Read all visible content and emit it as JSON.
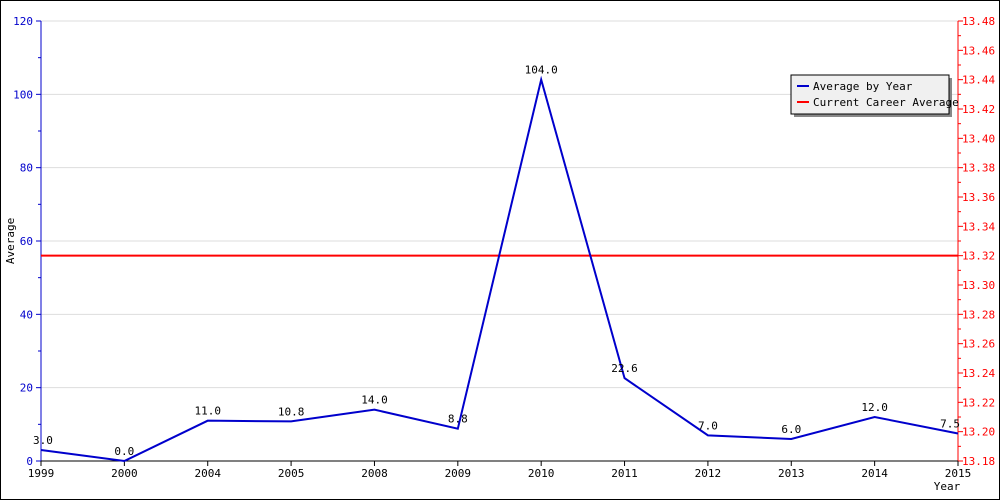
{
  "chart_data": {
    "type": "line",
    "categories": [
      "1999",
      "2000",
      "2004",
      "2005",
      "2008",
      "2009",
      "2010",
      "2011",
      "2012",
      "2013",
      "2014",
      "2015"
    ],
    "series": [
      {
        "name": "Average by Year",
        "color": "#0000cc",
        "values": [
          3.0,
          0.0,
          11.0,
          10.8,
          14.0,
          8.8,
          104.0,
          22.6,
          7.0,
          6.0,
          12.0,
          7.5
        ],
        "value_labels": [
          "3.0",
          "0.0",
          "11.0",
          "10.8",
          "14.0",
          "8.8",
          "104.0",
          "22.6",
          "7.0",
          "6.0",
          "12.0",
          "7.5"
        ]
      },
      {
        "name": "Current Career Average",
        "color": "#ff0000",
        "axis": "right",
        "constant": 13.32
      }
    ],
    "xlabel": "Year",
    "ylabel": "Average",
    "ylim": [
      0,
      120
    ],
    "y_ticks": [
      "0",
      "20",
      "40",
      "60",
      "80",
      "100",
      "120"
    ],
    "y2lim": [
      13.18,
      13.48
    ],
    "y2_ticks": [
      "13.18",
      "13.20",
      "13.22",
      "13.24",
      "13.26",
      "13.28",
      "13.30",
      "13.32",
      "13.34",
      "13.36",
      "13.38",
      "13.40",
      "13.42",
      "13.44",
      "13.46",
      "13.48"
    ],
    "grid": true,
    "legend_position": "top-right"
  }
}
